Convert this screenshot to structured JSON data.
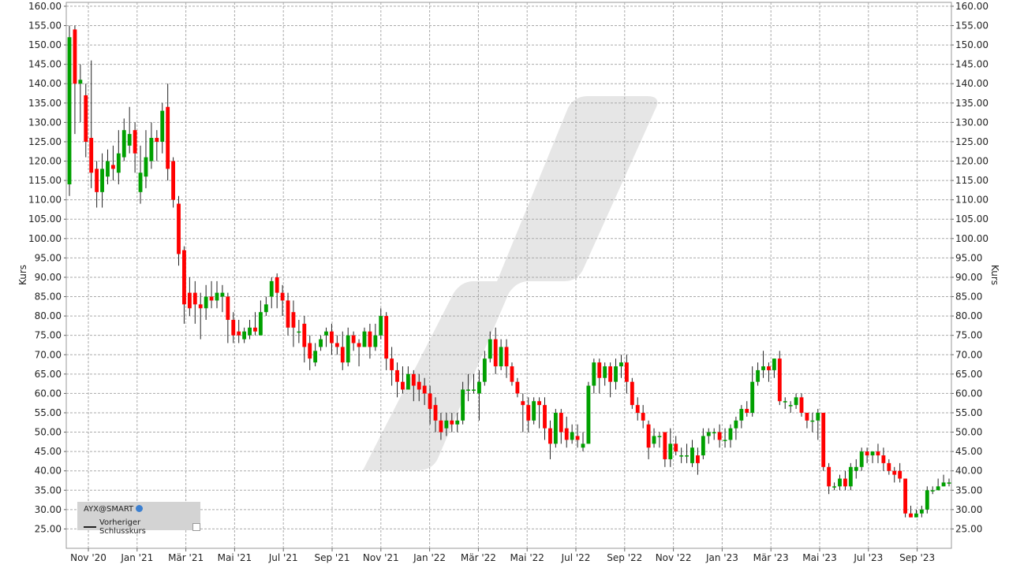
{
  "chart_data": {
    "type": "candlestick",
    "ylabel": "Kurs",
    "ylim": [
      20,
      161
    ],
    "y_ticks": [
      "25.00",
      "30.00",
      "35.00",
      "40.00",
      "45.00",
      "50.00",
      "55.00",
      "60.00",
      "65.00",
      "70.00",
      "75.00",
      "80.00",
      "85.00",
      "90.00",
      "95.00",
      "100.00",
      "105.00",
      "110.00",
      "115.00",
      "120.00",
      "125.00",
      "130.00",
      "135.00",
      "140.00",
      "145.00",
      "150.00",
      "155.00",
      "160.00"
    ],
    "x_ticks": [
      "Nov '20",
      "Jan '21",
      "Mär '21",
      "Mai '21",
      "Jul '21",
      "Sep '21",
      "Nov '21",
      "Jan '22",
      "Mär '22",
      "Mai '22",
      "Jul '22",
      "Sep '22",
      "Nov '22",
      "Jan '23",
      "Mär '23",
      "Mai '23",
      "Jul '23",
      "Sep '23"
    ],
    "grid": true,
    "legend_position": "bottom-left",
    "legend": {
      "title": "AYX@SMART",
      "series_label": "Vorheriger Schlusskurs"
    },
    "up_color": "#00a000",
    "down_color": "#ff0000",
    "candles": [
      [
        114,
        152,
        111,
        155
      ],
      [
        154,
        140,
        127,
        155
      ],
      [
        140,
        141,
        130,
        145
      ],
      [
        137,
        125,
        121,
        140
      ],
      [
        126,
        117,
        113,
        146
      ],
      [
        118,
        112,
        108,
        120
      ],
      [
        112,
        118,
        108,
        122
      ],
      [
        116,
        120,
        114,
        123
      ],
      [
        119,
        118,
        115,
        124
      ],
      [
        117,
        122,
        114,
        128
      ],
      [
        121,
        128,
        120,
        131
      ],
      [
        124,
        127,
        122,
        134
      ],
      [
        128,
        122,
        117,
        130
      ],
      [
        112,
        117,
        109,
        124
      ],
      [
        116,
        121,
        113,
        128
      ],
      [
        120,
        126,
        118,
        130
      ],
      [
        126,
        125,
        120,
        128
      ],
      [
        125,
        133,
        122,
        135
      ],
      [
        134,
        118,
        115,
        140
      ],
      [
        120,
        110,
        108,
        121
      ],
      [
        109,
        96,
        93,
        111
      ],
      [
        97,
        83,
        78,
        98
      ],
      [
        86,
        82,
        80,
        90
      ],
      [
        86,
        83,
        78,
        89
      ],
      [
        83,
        82,
        74,
        86
      ],
      [
        82,
        85,
        79,
        88
      ],
      [
        85,
        84,
        82,
        89
      ],
      [
        84,
        86,
        82,
        89
      ],
      [
        85,
        86,
        81,
        88
      ],
      [
        85,
        79,
        73,
        86
      ],
      [
        79,
        75,
        73,
        81
      ],
      [
        76,
        75,
        73,
        79
      ],
      [
        74,
        76,
        73,
        77
      ],
      [
        75,
        77,
        74,
        79
      ],
      [
        77,
        76,
        75,
        81
      ],
      [
        75,
        81,
        76,
        84
      ],
      [
        81,
        83,
        80,
        85
      ],
      [
        85,
        89,
        82,
        90
      ],
      [
        90,
        86,
        82,
        91
      ],
      [
        86,
        84,
        80,
        88
      ],
      [
        84,
        77,
        75,
        86
      ],
      [
        81,
        77,
        72,
        84
      ],
      [
        76,
        76,
        73,
        79
      ],
      [
        78,
        72,
        68,
        80
      ],
      [
        73,
        69,
        66,
        75
      ],
      [
        68,
        71,
        67,
        73
      ],
      [
        72,
        74,
        71,
        75
      ],
      [
        75,
        76,
        72,
        77
      ],
      [
        76,
        73,
        70,
        78
      ],
      [
        73,
        72,
        70,
        75
      ],
      [
        72,
        68,
        66,
        76
      ],
      [
        68,
        75,
        67,
        77
      ],
      [
        75,
        73,
        71,
        76
      ],
      [
        73,
        72,
        67,
        74
      ],
      [
        72,
        76,
        72,
        77
      ],
      [
        76,
        72,
        69,
        78
      ],
      [
        72,
        75,
        71,
        78
      ],
      [
        75,
        80,
        74,
        82
      ],
      [
        80,
        69,
        66,
        81
      ],
      [
        69,
        66,
        62,
        72
      ],
      [
        66,
        63,
        59,
        68
      ],
      [
        63,
        61,
        60,
        67
      ],
      [
        61,
        65,
        61,
        67
      ],
      [
        65,
        62,
        58,
        66
      ],
      [
        63,
        61,
        58,
        65
      ],
      [
        62,
        60,
        57,
        64
      ],
      [
        60,
        56,
        52,
        62
      ],
      [
        57,
        53,
        50,
        59
      ],
      [
        53,
        50,
        48,
        55
      ],
      [
        51,
        53,
        49,
        55
      ],
      [
        53,
        52,
        50,
        55
      ],
      [
        52,
        53,
        50,
        55
      ],
      [
        53,
        61,
        52,
        63
      ],
      [
        61,
        61,
        58,
        65
      ],
      [
        61,
        61,
        60,
        65
      ],
      [
        60,
        63,
        53,
        66
      ],
      [
        63,
        69,
        62,
        71
      ],
      [
        69,
        74,
        68,
        76
      ],
      [
        74,
        67,
        65,
        77
      ],
      [
        67,
        72,
        66,
        74
      ],
      [
        72,
        67,
        64,
        74
      ],
      [
        67,
        63,
        62,
        68
      ],
      [
        63,
        60,
        59,
        64
      ],
      [
        58,
        57,
        50,
        60
      ],
      [
        57,
        53,
        50,
        59
      ],
      [
        53,
        58,
        52,
        59
      ],
      [
        58,
        57,
        51,
        59
      ],
      [
        57,
        51,
        48,
        59
      ],
      [
        51,
        47,
        43,
        53
      ],
      [
        47,
        55,
        46,
        56
      ],
      [
        55,
        50,
        47,
        56
      ],
      [
        51,
        48,
        46,
        54
      ],
      [
        48,
        50,
        47,
        52
      ],
      [
        49,
        48,
        46,
        52
      ],
      [
        46,
        47,
        45,
        50
      ],
      [
        47,
        62,
        47,
        63
      ],
      [
        62,
        68,
        60,
        69
      ],
      [
        68,
        64,
        60,
        69
      ],
      [
        64,
        67,
        62,
        68
      ],
      [
        67,
        63,
        59,
        68
      ],
      [
        63,
        67,
        61,
        69
      ],
      [
        67,
        68,
        64,
        70
      ],
      [
        68,
        63,
        60,
        70
      ],
      [
        63,
        57,
        56,
        64
      ],
      [
        57,
        55,
        53,
        59
      ],
      [
        55,
        53,
        51,
        57
      ],
      [
        52,
        46,
        43,
        53
      ],
      [
        47,
        49,
        46,
        51
      ],
      [
        49,
        49,
        46,
        50
      ],
      [
        50,
        43,
        41,
        50
      ],
      [
        43,
        47,
        41,
        51
      ],
      [
        47,
        45,
        44,
        49
      ],
      [
        44,
        44,
        42,
        46
      ],
      [
        44,
        44,
        42,
        47
      ],
      [
        42,
        46,
        41,
        48
      ],
      [
        44,
        42,
        39,
        46
      ],
      [
        44,
        49,
        43,
        51
      ],
      [
        49,
        50,
        47,
        51
      ],
      [
        50,
        50,
        48,
        51
      ],
      [
        50,
        48,
        46,
        52
      ],
      [
        48,
        48,
        46,
        51
      ],
      [
        48,
        51,
        46,
        52
      ],
      [
        51,
        53,
        48,
        54
      ],
      [
        53,
        56,
        51,
        57
      ],
      [
        56,
        55,
        54,
        58
      ],
      [
        55,
        63,
        54,
        67
      ],
      [
        63,
        66,
        62,
        68
      ],
      [
        66,
        67,
        64,
        71
      ],
      [
        67,
        66,
        63,
        68
      ],
      [
        66,
        69,
        64,
        69
      ],
      [
        69,
        58,
        57,
        71
      ],
      [
        58,
        58,
        56,
        59
      ],
      [
        57,
        57,
        55,
        58
      ],
      [
        57,
        59,
        56,
        60
      ],
      [
        59,
        55,
        54,
        60
      ],
      [
        55,
        53,
        51,
        55
      ],
      [
        53,
        53,
        50,
        55
      ],
      [
        53,
        55,
        48,
        56
      ],
      [
        55,
        41,
        40,
        55
      ],
      [
        41,
        36,
        34,
        42
      ],
      [
        36,
        36,
        35,
        37
      ],
      [
        36,
        38,
        35,
        39
      ],
      [
        38,
        36,
        35,
        40
      ],
      [
        36,
        41,
        35,
        42
      ],
      [
        40,
        41,
        38,
        43
      ],
      [
        41,
        45,
        40,
        46
      ],
      [
        45,
        44,
        42,
        46
      ],
      [
        44,
        45,
        42,
        45
      ],
      [
        45,
        44,
        42,
        47
      ],
      [
        44,
        42,
        40,
        46
      ],
      [
        42,
        40,
        39,
        43
      ],
      [
        40,
        39,
        37,
        41
      ],
      [
        40,
        38,
        37,
        42
      ],
      [
        38,
        29,
        28,
        38
      ],
      [
        29,
        28,
        28,
        31
      ],
      [
        28,
        29,
        28,
        30
      ],
      [
        29,
        30,
        28,
        31
      ],
      [
        30,
        35,
        29,
        36
      ],
      [
        35,
        35,
        34,
        36
      ],
      [
        35,
        36,
        35,
        38
      ],
      [
        36,
        37,
        36,
        39
      ],
      [
        37,
        37,
        36,
        38
      ]
    ]
  }
}
